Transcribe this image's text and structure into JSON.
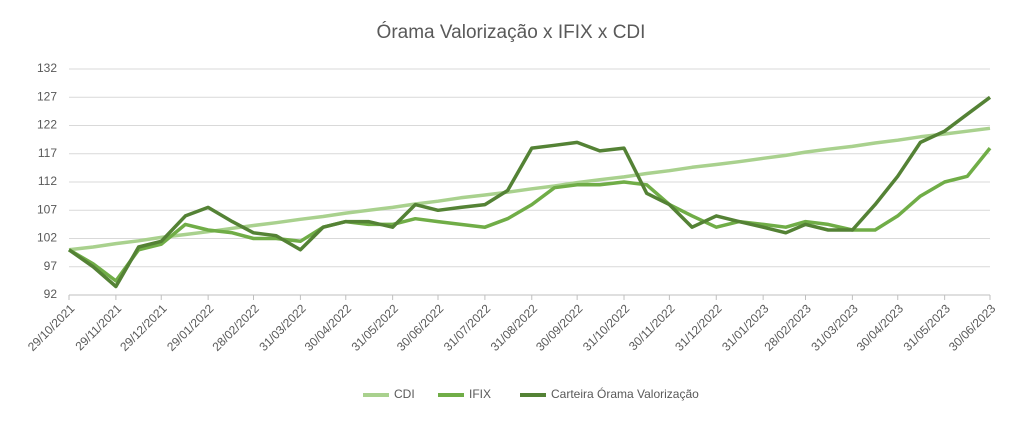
{
  "chart_data": {
    "type": "line",
    "title": "Órama Valorização x IFIX x CDI",
    "x": [
      "29/10/2021",
      "14/11/2021",
      "29/11/2021",
      "14/12/2021",
      "29/12/2021",
      "14/01/2022",
      "29/01/2022",
      "14/02/2022",
      "28/02/2022",
      "15/03/2022",
      "31/03/2022",
      "15/04/2022",
      "30/04/2022",
      "15/05/2022",
      "31/05/2022",
      "15/06/2022",
      "30/06/2022",
      "15/07/2022",
      "31/07/2022",
      "15/08/2022",
      "31/08/2022",
      "15/09/2022",
      "30/09/2022",
      "15/10/2022",
      "31/10/2022",
      "15/11/2022",
      "30/11/2022",
      "15/12/2022",
      "31/12/2022",
      "15/01/2023",
      "31/01/2023",
      "15/02/2023",
      "28/02/2023",
      "15/03/2023",
      "31/03/2023",
      "15/04/2023",
      "30/04/2023",
      "15/05/2023",
      "31/05/2023",
      "15/06/2023",
      "30/06/2023"
    ],
    "series": [
      {
        "name": "CDI",
        "color": "#a9d18e",
        "values": [
          100,
          100.5,
          101.1,
          101.6,
          102.2,
          102.7,
          103.2,
          103.8,
          104.3,
          104.8,
          105.4,
          105.9,
          106.5,
          107,
          107.5,
          108.1,
          108.6,
          109.2,
          109.7,
          110.2,
          110.8,
          111.3,
          111.9,
          112.4,
          112.9,
          113.5,
          114,
          114.6,
          115.1,
          115.6,
          116.2,
          116.7,
          117.3,
          117.8,
          118.3,
          118.9,
          119.4,
          120,
          120.5,
          121,
          121.5
        ]
      },
      {
        "name": "IFIX",
        "color": "#70ad47",
        "values": [
          100,
          97.5,
          94.5,
          100,
          101,
          104.5,
          103.5,
          103,
          102,
          102,
          101.5,
          104,
          105,
          104.5,
          104.5,
          105.5,
          105,
          104.5,
          104,
          105.5,
          108,
          111,
          111.5,
          111.5,
          112,
          111.5,
          108,
          106,
          104,
          105,
          104.5,
          104,
          105,
          104.5,
          103.5,
          103.5,
          106,
          109.5,
          112,
          113,
          118
        ]
      },
      {
        "name": "Carteira Órama Valorização",
        "color": "#548235",
        "values": [
          100,
          97,
          93.5,
          100.5,
          101.5,
          106,
          107.5,
          105,
          103,
          102.5,
          100,
          104,
          105,
          105,
          104,
          108,
          107,
          107.5,
          108,
          110.5,
          118,
          118.5,
          119,
          117.5,
          118,
          110,
          108,
          104,
          106,
          105,
          104,
          103,
          104.5,
          103.5,
          103.5,
          108,
          113,
          119,
          121,
          124,
          127
        ]
      }
    ],
    "xlim": [
      "29/10/2021",
      "30/06/2023"
    ],
    "xticks": [
      "29/10/2021",
      "29/11/2021",
      "29/12/2021",
      "29/01/2022",
      "28/02/2022",
      "31/03/2022",
      "30/04/2022",
      "31/05/2022",
      "30/06/2022",
      "31/07/2022",
      "31/08/2022",
      "30/09/2022",
      "31/10/2022",
      "30/11/2022",
      "31/12/2022",
      "31/01/2023",
      "28/02/2023",
      "31/03/2023",
      "30/04/2023",
      "31/05/2023",
      "30/06/2023"
    ],
    "ylim": [
      92,
      132
    ],
    "yticks": [
      92,
      97,
      102,
      107,
      112,
      117,
      122,
      127,
      132
    ],
    "grid": true,
    "legend": "bottom"
  }
}
